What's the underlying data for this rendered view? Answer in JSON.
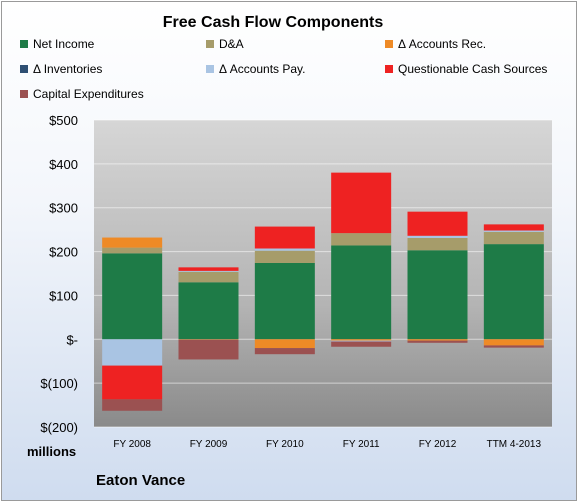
{
  "chart_data": {
    "type": "bar",
    "stacked": true,
    "title": "Free Cash Flow Components",
    "units_label": "millions",
    "company": "Eaton Vance",
    "categories": [
      "FY 2008",
      "FY 2009",
      "FY 2010",
      "FY 2011",
      "FY 2012",
      "TTM 4-2013"
    ],
    "ylim": [
      -200,
      500
    ],
    "yticks": [
      {
        "value": 500,
        "label": "$500"
      },
      {
        "value": 400,
        "label": "$400"
      },
      {
        "value": 300,
        "label": "$300"
      },
      {
        "value": 200,
        "label": "$200"
      },
      {
        "value": 100,
        "label": "$100"
      },
      {
        "value": 0,
        "label": "$-"
      },
      {
        "value": -100,
        "label": "$(100)"
      },
      {
        "value": -200,
        "label": "$(200)"
      }
    ],
    "grid": true,
    "legend_position": "top",
    "series": [
      {
        "name": "Net Income",
        "color": "#1e7b47",
        "values": [
          196,
          130,
          174,
          214,
          203,
          217
        ]
      },
      {
        "name": "D&A",
        "color": "#a69c6a",
        "values": [
          13,
          24,
          28,
          28,
          28,
          28
        ]
      },
      {
        "name": "Δ Accounts Rec.",
        "color": "#ee8a26",
        "values": [
          23,
          -1,
          -20,
          -3,
          -3,
          -14
        ]
      },
      {
        "name": "Δ Inventories",
        "color": "#2e4f73",
        "values": [
          0,
          0,
          0,
          0,
          0,
          0
        ]
      },
      {
        "name": "Δ Accounts Pay.",
        "color": "#a9c4e3",
        "values": [
          -60,
          2,
          5,
          -2,
          5,
          3
        ]
      },
      {
        "name": "Questionable Cash Sources",
        "color": "#ee2222",
        "values": [
          -77,
          8,
          50,
          138,
          55,
          14
        ]
      },
      {
        "name": "Capital Expenditures",
        "color": "#9b5151",
        "values": [
          -26,
          -45,
          -14,
          -12,
          -5,
          -5
        ]
      }
    ]
  }
}
